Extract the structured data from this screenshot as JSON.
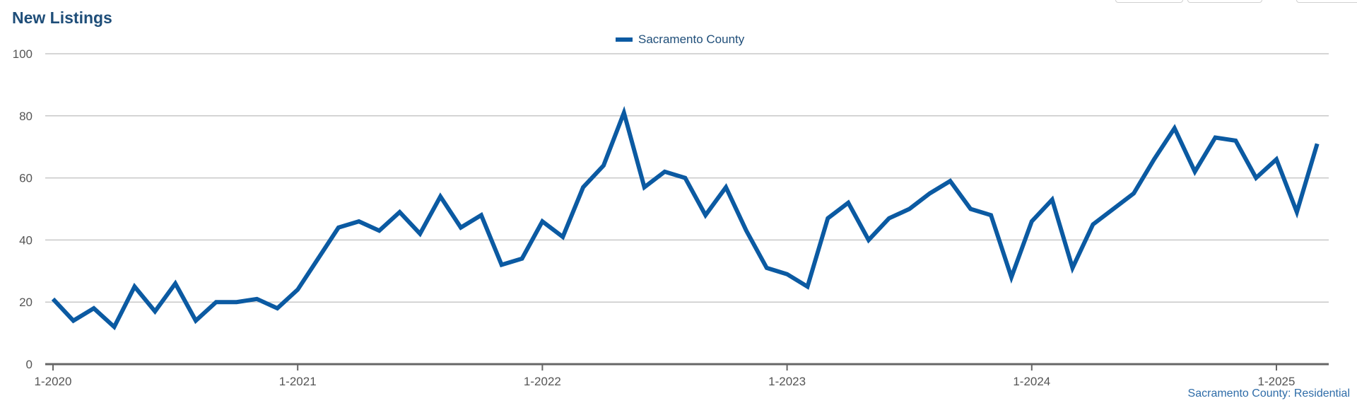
{
  "chart_data": {
    "type": "line",
    "title": "New Listings",
    "legend": {
      "placement": "top-center",
      "entries": [
        "Sacramento County"
      ]
    },
    "source_note": "Sacramento County: Residential",
    "xlabel": "",
    "ylabel": "",
    "ylim": [
      0,
      100
    ],
    "yticks": [
      0,
      20,
      40,
      60,
      80,
      100
    ],
    "xticks": [
      "1-2020",
      "1-2021",
      "1-2022",
      "1-2023",
      "1-2024",
      "1-2025"
    ],
    "grid": true,
    "x_start": "1-2020",
    "x_interval": "month",
    "series": [
      {
        "name": "Sacramento County",
        "color": "#0b5aa2",
        "values": [
          21,
          14,
          18,
          12,
          25,
          17,
          26,
          14,
          20,
          20,
          21,
          18,
          24,
          34,
          44,
          46,
          43,
          49,
          42,
          54,
          44,
          48,
          32,
          34,
          46,
          41,
          57,
          64,
          81,
          57,
          62,
          60,
          48,
          57,
          43,
          31,
          29,
          25,
          47,
          52,
          40,
          47,
          50,
          55,
          59,
          50,
          48,
          28,
          46,
          53,
          31,
          45,
          50,
          55,
          66,
          76,
          62,
          73,
          72,
          60,
          66,
          49,
          71
        ]
      }
    ]
  }
}
